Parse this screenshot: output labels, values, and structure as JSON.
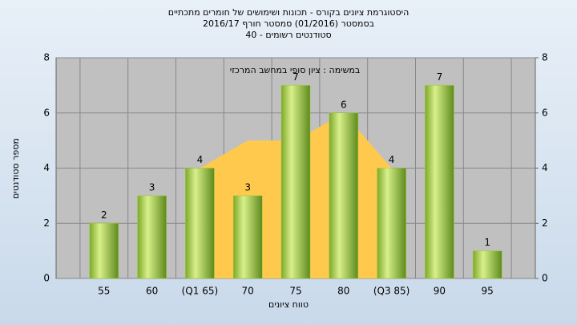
{
  "chart_data": {
    "type": "bar",
    "title": "היסטוגרמת ציונים בקורס - תכונות ושימושים של חומרים מתכתיים",
    "subtitle": "בסמסטר  (01/2016)  סמסטר חורף 2016/17",
    "subtitle2": "סטודנטים רשומים - 40",
    "annotation": "במשימה : ציון סופי במחשב המרכזי",
    "x_label": "טווח ציונים",
    "y_label": "מספר סטודנטים",
    "categories": [
      "55",
      "60",
      "(Q1 65)",
      "70",
      "75",
      "80",
      "(Q3 85)",
      "90",
      "95"
    ],
    "series": [
      {
        "type": "bar",
        "color": "#9acd32",
        "values": [
          2,
          3,
          4,
          3,
          7,
          6,
          4,
          7,
          1
        ]
      },
      {
        "type": "area",
        "color": "#ffc94d",
        "axis": "y2",
        "values": [
          null,
          null,
          4,
          5,
          5,
          6,
          4,
          null,
          null
        ]
      }
    ],
    "ylim": [
      0,
      8
    ],
    "yticks": [
      0,
      2,
      4,
      6,
      8
    ],
    "y2lim": [
      0,
      8
    ],
    "y2ticks": [
      0,
      2,
      4,
      6,
      8
    ],
    "grid": true
  }
}
